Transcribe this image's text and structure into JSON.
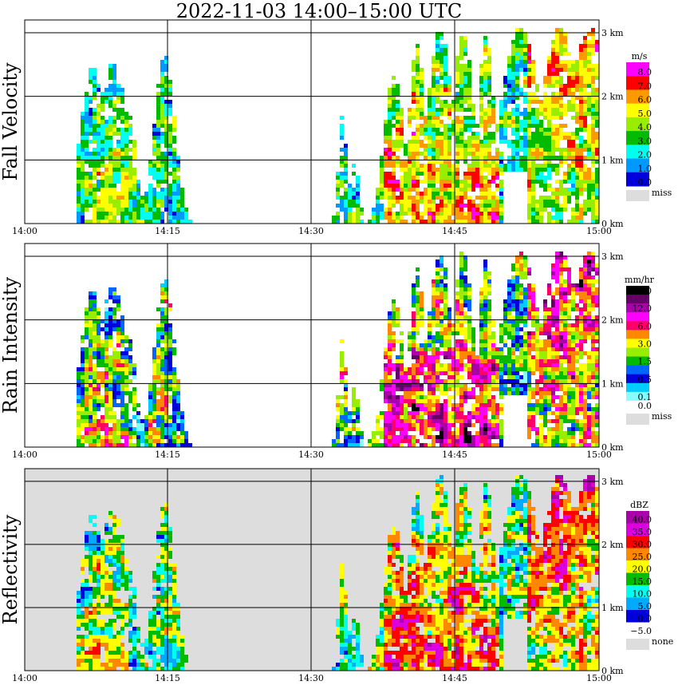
{
  "title": "2022-11-03   14:00–15:00 UTC",
  "chart_data": [
    {
      "type": "heatmap",
      "ylabel": "Fall Velocity",
      "x_ticks": [
        "14:00",
        "14:15",
        "14:30",
        "14:45",
        "15:00"
      ],
      "y_ticks": [
        "0 km",
        "1 km",
        "2 km",
        "3 km"
      ],
      "xlim": [
        "14:00",
        "15:00"
      ],
      "ylim_km": [
        0,
        3.2
      ],
      "grid": true,
      "colorbar": {
        "unit": "m/s",
        "levels": [
          {
            "label": "8.0",
            "color": "#ff00ff"
          },
          {
            "label": "7.0",
            "color": "#ff0000"
          },
          {
            "label": "6.0",
            "color": "#ff9900"
          },
          {
            "label": "5.0",
            "color": "#ffff00"
          },
          {
            "label": "4.0",
            "color": "#99ee00"
          },
          {
            "label": "3.0",
            "color": "#00bb00"
          },
          {
            "label": "2.0",
            "color": "#00ffee"
          },
          {
            "label": "1.0",
            "color": "#0099ff"
          },
          {
            "label": "0.0",
            "color": "#0000dd"
          }
        ],
        "missing": {
          "label": "miss",
          "color": "#dddddd"
        }
      }
    },
    {
      "type": "heatmap",
      "ylabel": "Rain Intensity",
      "x_ticks": [
        "14:00",
        "14:15",
        "14:30",
        "14:45",
        "15:00"
      ],
      "y_ticks": [
        "0 km",
        "1 km",
        "2 km",
        "3 km"
      ],
      "xlim": [
        "14:00",
        "15:00"
      ],
      "ylim_km": [
        0,
        3.2
      ],
      "grid": true,
      "colorbar": {
        "unit": "mm/hr",
        "levels": [
          {
            "label": "48.0",
            "color": "#000000"
          },
          {
            "label": "",
            "color": "#660066"
          },
          {
            "label": "12.0",
            "color": "#aa00aa"
          },
          {
            "label": "",
            "color": "#ff00ff"
          },
          {
            "label": "6.0",
            "color": "#ff0066"
          },
          {
            "label": "",
            "color": "#ff8800"
          },
          {
            "label": "3.0",
            "color": "#ffff00"
          },
          {
            "label": "",
            "color": "#99ee00"
          },
          {
            "label": "1.5",
            "color": "#00bb00"
          },
          {
            "label": "",
            "color": "#0066ff"
          },
          {
            "label": "0.5",
            "color": "#0000dd"
          },
          {
            "label": "",
            "color": "#00ccff"
          },
          {
            "label": "0.1",
            "color": "#88ffff"
          },
          {
            "label": "0.0",
            "color": "#ffffff"
          }
        ],
        "missing": {
          "label": "miss",
          "color": "#dddddd"
        }
      }
    },
    {
      "type": "heatmap",
      "ylabel": "Reflectivity",
      "x_ticks": [
        "14:00",
        "14:15",
        "14:30",
        "14:45",
        "15:00"
      ],
      "y_ticks": [
        "0 km",
        "1 km",
        "2 km",
        "3 km"
      ],
      "xlim": [
        "14:00",
        "15:00"
      ],
      "ylim_km": [
        0,
        3.2
      ],
      "grid": true,
      "colorbar": {
        "unit": "dBZ",
        "levels": [
          {
            "label": "40.0",
            "color": "#aa00aa"
          },
          {
            "label": "35.0",
            "color": "#dd00dd"
          },
          {
            "label": "30.0",
            "color": "#ff0000"
          },
          {
            "label": "25.0",
            "color": "#ff8800"
          },
          {
            "label": "20.0",
            "color": "#ffff00"
          },
          {
            "label": "15.0",
            "color": "#00bb00"
          },
          {
            "label": "10.0",
            "color": "#00ffee"
          },
          {
            "label": "5.0",
            "color": "#00aaff"
          },
          {
            "label": "0.0",
            "color": "#0000dd"
          },
          {
            "label": "−5.0",
            "color": "#ffffff"
          }
        ],
        "missing": {
          "label": "none",
          "color": "#dddddd"
        }
      }
    }
  ]
}
